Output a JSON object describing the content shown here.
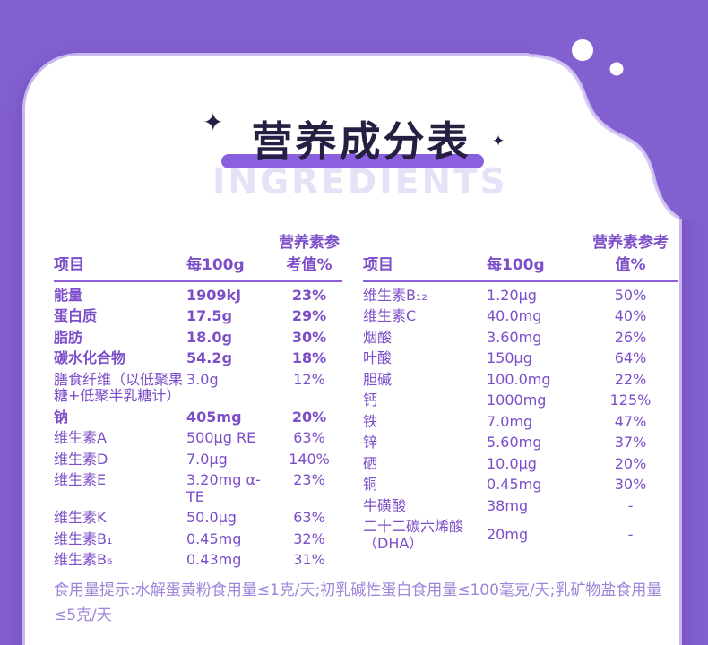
{
  "colors": {
    "background_purple": "#8360cf",
    "card_white": "#ffffff",
    "edge_light": "#d6c9f4",
    "title_text": "#271f41",
    "highlight_bar": "#8a5fe0",
    "ingredients_text": "#e7e1f7",
    "table_text": "#7c4ec9",
    "divider": "#8b5fd6",
    "note_text": "#9e84da",
    "decor_circle": "#ffffff"
  },
  "title": {
    "text": "营养成分表",
    "subtitle": "INGREDIENTS",
    "sparkle_left": "✦",
    "sparkle_right": "✦"
  },
  "table_headers": {
    "item": "项目",
    "per_100g": "每100g",
    "nrv": "营养素参考值%"
  },
  "left_table": {
    "rows": [
      {
        "label": "能量",
        "value": "1909kJ",
        "nrv": "23%",
        "bold": true
      },
      {
        "label": "蛋白质",
        "value": "17.5g",
        "nrv": "29%",
        "bold": true
      },
      {
        "label": "脂肪",
        "value": "18.0g",
        "nrv": "30%",
        "bold": true
      },
      {
        "label": "碳水化合物",
        "value": "54.2g",
        "nrv": "18%",
        "bold": true
      },
      {
        "label": "膳食纤维（以低聚果糖+低聚半乳糖计）",
        "value": "3.0g",
        "nrv": "12%",
        "bold": false
      },
      {
        "label": "钠",
        "value": "405mg",
        "nrv": "20%",
        "bold": true
      },
      {
        "label": "维生素A",
        "value": "500μg RE",
        "nrv": "63%",
        "bold": false
      },
      {
        "label": "维生素D",
        "value": "7.0μg",
        "nrv": "140%",
        "bold": false
      },
      {
        "label": "维生素E",
        "value": "3.20mg α-TE",
        "nrv": "23%",
        "bold": false
      },
      {
        "label": "维生素K",
        "value": "50.0μg",
        "nrv": "63%",
        "bold": false
      },
      {
        "label": "维生素B₁",
        "value": "0.45mg",
        "nrv": "32%",
        "bold": false
      },
      {
        "label": "维生素B₆",
        "value": "0.43mg",
        "nrv": "31%",
        "bold": false
      }
    ]
  },
  "right_table": {
    "rows": [
      {
        "label": "维生素B₁₂",
        "value": "1.20μg",
        "nrv": "50%",
        "bold": false
      },
      {
        "label": "维生素C",
        "value": "40.0mg",
        "nrv": "40%",
        "bold": false
      },
      {
        "label": "烟酸",
        "value": "3.60mg",
        "nrv": "26%",
        "bold": false
      },
      {
        "label": "叶酸",
        "value": "150μg",
        "nrv": "64%",
        "bold": false
      },
      {
        "label": "胆碱",
        "value": "100.0mg",
        "nrv": "22%",
        "bold": false
      },
      {
        "label": "钙",
        "value": "1000mg",
        "nrv": "125%",
        "bold": false
      },
      {
        "label": "铁",
        "value": "7.0mg",
        "nrv": "47%",
        "bold": false
      },
      {
        "label": "锌",
        "value": "5.60mg",
        "nrv": "37%",
        "bold": false
      },
      {
        "label": "硒",
        "value": "10.0μg",
        "nrv": "20%",
        "bold": false
      },
      {
        "label": "铜",
        "value": "0.45mg",
        "nrv": "30%",
        "bold": false
      },
      {
        "label": "牛磺酸",
        "value": "38mg",
        "nrv": "-",
        "bold": false
      },
      {
        "label": "二十二碳六烯酸（DHA）",
        "value": "20mg",
        "nrv": "-",
        "bold": false,
        "valign": "center"
      }
    ]
  },
  "footnote": "食用量提示:水解蛋黄粉食用量≤1克/天;初乳碱性蛋白食用量≤100毫克/天;乳矿物盐食用量≤5克/天"
}
